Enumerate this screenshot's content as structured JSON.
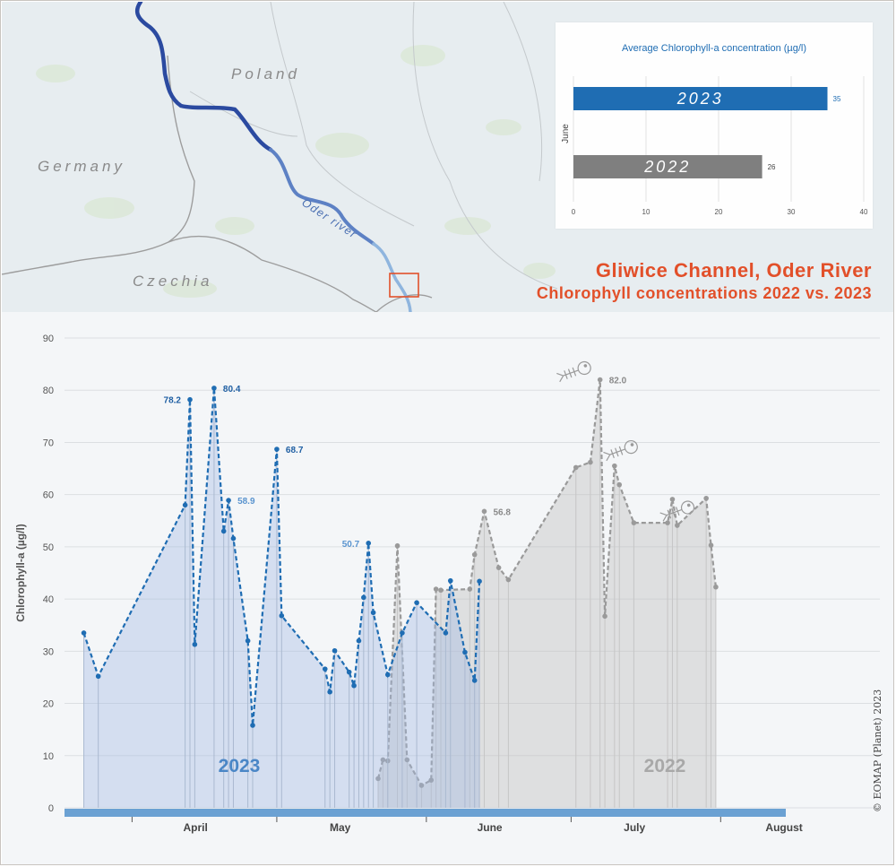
{
  "map": {
    "countries": [
      "Poland",
      "Germany",
      "Czechia"
    ],
    "river_label": "Oder river",
    "colors": {
      "land": "#e7edf0",
      "river_dark": "#2b4aa0",
      "river_light": "#8fb5de",
      "marker": "#e2502a"
    }
  },
  "title": "Gliwice Channel, Oder River",
  "subtitle": "Chlorophyll concentrations 2022 vs. 2023",
  "copyright": "© EOMAP (Planet) 2023",
  "chart_data": [
    {
      "type": "bar",
      "orientation": "horizontal",
      "title": "Average Chlorophyll-a concentration (µg/l)",
      "category_label": "June",
      "categories": [
        "2023",
        "2022"
      ],
      "values": [
        35,
        26
      ],
      "value_labels": [
        "35",
        "26"
      ],
      "colors": [
        "#1f6db3",
        "#7f7f7f"
      ],
      "xlim": [
        0,
        40
      ],
      "xticks": [
        "0",
        "10",
        "20",
        "30",
        "40"
      ]
    },
    {
      "type": "area",
      "ylabel": "Chlorophyll-a (µg/l)",
      "ylim": [
        0,
        90
      ],
      "yticks": [
        "0",
        "10",
        "20",
        "30",
        "40",
        "50",
        "60",
        "70",
        "80",
        "90"
      ],
      "x_months": [
        "April",
        "May",
        "June",
        "July",
        "August"
      ],
      "x_month_days": [
        15,
        45,
        76,
        106,
        137
      ],
      "grid": true,
      "series": [
        {
          "name": "2023",
          "color": "#1f6db3",
          "x": [
            -10,
            -7,
            11,
            12,
            13,
            17,
            19,
            20,
            21,
            24,
            25,
            30,
            31,
            40,
            41,
            42,
            45,
            46,
            47,
            48,
            49,
            50,
            53,
            56,
            59,
            65,
            66,
            69,
            71,
            72
          ],
          "y": [
            33.5,
            25.2,
            58.0,
            78.2,
            31.3,
            80.4,
            53.0,
            58.9,
            51.6,
            32.0,
            15.8,
            68.7,
            36.8,
            26.6,
            22.2,
            30.1,
            26.0,
            23.4,
            32.0,
            40.3,
            50.7,
            37.4,
            25.5,
            33.5,
            39.3,
            33.5,
            43.5,
            29.8,
            24.4,
            43.4
          ],
          "labels": [
            {
              "i": 3,
              "text": "78.2"
            },
            {
              "i": 5,
              "text": "80.4"
            },
            {
              "i": 7,
              "text": "58.9"
            },
            {
              "i": 11,
              "text": "68.7"
            },
            {
              "i": 20,
              "text": "50.7"
            }
          ]
        },
        {
          "name": "2022",
          "color": "#9a9a9a",
          "x": [
            51,
            52,
            53,
            55,
            57,
            60,
            62,
            63,
            64,
            70,
            71,
            73,
            76,
            78,
            92,
            95,
            97,
            98,
            100,
            101,
            104,
            111,
            112,
            113,
            119,
            120,
            121
          ],
          "y": [
            5.6,
            9.2,
            9.0,
            50.2,
            9.2,
            4.3,
            5.3,
            41.9,
            41.7,
            41.9,
            48.5,
            56.8,
            46.0,
            43.7,
            65.2,
            66.2,
            82.0,
            36.7,
            65.5,
            61.9,
            54.6,
            54.6,
            59.1,
            54.1,
            59.3,
            50.3,
            42.3
          ],
          "labels": [
            {
              "i": 11,
              "text": "56.8"
            },
            {
              "i": 16,
              "text": "82.0"
            }
          ]
        }
      ]
    }
  ]
}
